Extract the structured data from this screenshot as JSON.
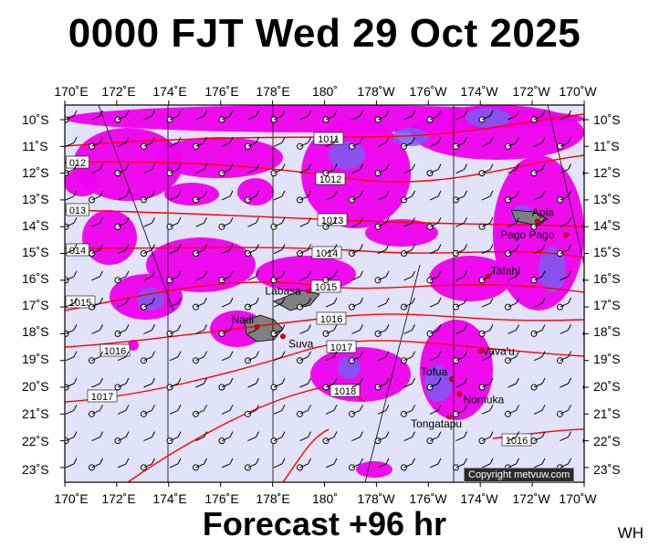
{
  "title": "0000 FJT Wed 29 Oct 2025",
  "footer": "Forecast +96 hr",
  "initials": "WH",
  "copyright": "Copyright metvuw.com",
  "colors": {
    "sea": "#e2e2f8",
    "rain_light": "#ee00ee",
    "rain_medium": "#b400e6",
    "rain_heavy": "#7b5cf0",
    "isobar": "#ff0000",
    "land": "#808080",
    "town": "#dd0000"
  },
  "top_lon_labels": [
    "170˚E",
    "172˚E",
    "174˚E",
    "176˚E",
    "178˚E",
    "180˚",
    "178˚W",
    "176˚W",
    "174˚W",
    "172˚W",
    "170˚W"
  ],
  "bottom_lon_labels": [
    "170˚E",
    "172˚E",
    "174˚E",
    "176˚E",
    "178˚E",
    "180˚",
    "178˚W",
    "176˚W",
    "174˚W",
    "172˚W",
    "170˚W"
  ],
  "left_lat_labels": [
    "10˚S",
    "11˚S",
    "12˚S",
    "13˚S",
    "14˚S",
    "15˚S",
    "16˚S",
    "17˚S",
    "18˚S",
    "19˚S",
    "20˚S",
    "21˚S",
    "22˚S",
    "23˚S"
  ],
  "right_lat_labels": [
    "10˚S",
    "11˚S",
    "12˚S",
    "13˚S",
    "14˚S",
    "15˚S",
    "16˚S",
    "17˚S",
    "18˚S",
    "19˚S",
    "20˚S",
    "21˚S",
    "22˚S",
    "23˚S"
  ],
  "isobar_labels": [
    "1011",
    "1012",
    "1013",
    "1014",
    "1015",
    "1016",
    "1017",
    "1018",
    "012",
    "013",
    "014",
    "1015",
    "1016",
    "1017",
    "1016"
  ],
  "places": [
    {
      "name": "Apia",
      "lon": -171.8,
      "lat": -13.8
    },
    {
      "name": "Pago Pago",
      "lon": -170.7,
      "lat": -14.3
    },
    {
      "name": "Tafahi",
      "lon": -173.7,
      "lat": -15.85
    },
    {
      "name": "Labasa",
      "lon": 179.4,
      "lat": -16.4
    },
    {
      "name": "Nadi",
      "lon": 177.4,
      "lat": -17.75
    },
    {
      "name": "Suva",
      "lon": 178.4,
      "lat": -18.1
    },
    {
      "name": "Vava'u",
      "lon": -174.0,
      "lat": -18.65
    },
    {
      "name": "Tofua",
      "lon": -175.1,
      "lat": -19.7
    },
    {
      "name": "Nomuka",
      "lon": -174.8,
      "lat": -20.25
    },
    {
      "name": "Tongatapu",
      "lon": -175.2,
      "lat": -21.1
    }
  ]
}
